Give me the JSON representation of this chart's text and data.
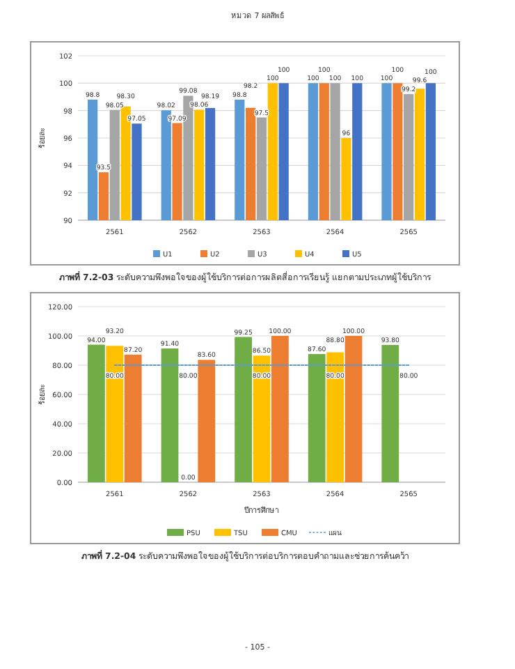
{
  "chart_data": [
    {
      "type": "bar",
      "title": "**ภาพที่ 7.2-03** ระดับความพึงพอใจของผู้ใช้บริการต่อการผลิตสื่อการเรียนรู้ แยกตามประเภทผู้ใช้บริการ",
      "ylabel": "ร้อยละ",
      "annotations": [
        "หมวด 7 ผลลัพธ์"
      ],
      "categories": [
        "2561",
        "2562",
        "2563",
        "2564",
        "2565"
      ],
      "ylim": [
        90,
        102
      ],
      "yticks": [
        90,
        92,
        94,
        96,
        98,
        100,
        102
      ],
      "grid": "y",
      "legend": "bottom",
      "series": [
        {
          "name": "U1",
          "color": "#5b9bd5",
          "values": [
            98.8,
            98.02,
            98.8,
            100,
            100
          ],
          "value_labels": [
            "98.8",
            "98.02",
            "98.8",
            "100",
            "100"
          ]
        },
        {
          "name": "U2",
          "color": "#ed7d31",
          "values": [
            93.5,
            97.09,
            98.2,
            100,
            100
          ],
          "value_labels": [
            "93.5",
            "97.09",
            "98.2",
            "100",
            "100"
          ]
        },
        {
          "name": "U3",
          "color": "#a5a5a5",
          "values": [
            98.05,
            99.08,
            97.5,
            100,
            99.2
          ],
          "value_labels": [
            "98.05",
            "99.08",
            "97.5",
            "100",
            "99.2"
          ]
        },
        {
          "name": "U4",
          "color": "#ffc000",
          "values": [
            98.3,
            98.06,
            100,
            96,
            99.6
          ],
          "value_labels": [
            "98.30",
            "98.06",
            "100",
            "96",
            "99.6"
          ]
        },
        {
          "name": "U5",
          "color": "#4472c4",
          "values": [
            97.05,
            98.19,
            100,
            100,
            100
          ],
          "value_labels": [
            "97.05",
            "98.19",
            "100",
            "100",
            "100"
          ]
        }
      ]
    },
    {
      "type": "bar",
      "title": "**ภาพที่ 7.2-04** ระดับความพึงพอใจของผู้ใช้บริการต่อบริการตอบคำถามและช่วยการค้นคว้า",
      "xlabel": "ปีการศึกษา",
      "ylabel": "ร้อยละ",
      "annotations": [
        "- 105 -"
      ],
      "categories": [
        "2561",
        "2562",
        "2563",
        "2564",
        "2565"
      ],
      "ylim": [
        0,
        120
      ],
      "yticks": [
        {
          "value": 0,
          "label": "0.00"
        },
        {
          "value": 20,
          "label": "20.00"
        },
        {
          "value": 40,
          "label": "40.00"
        },
        {
          "value": 60,
          "label": "60.00"
        },
        {
          "value": 80,
          "label": "80.00"
        },
        {
          "value": 100,
          "label": "100.00"
        },
        {
          "value": 120,
          "label": "120.00"
        }
      ],
      "grid": "y",
      "legend": "bottom",
      "series": [
        {
          "name": "PSU",
          "color": "#70ad47",
          "values": [
            94,
            91.4,
            99.25,
            87.6,
            93.8
          ],
          "value_labels": [
            "94.00",
            "91.40",
            "99.25",
            "87.60",
            "93.80"
          ]
        },
        {
          "name": "TSU",
          "color": "#ffc000",
          "values": [
            93.2,
            0,
            86.5,
            88.8,
            null
          ],
          "value_labels": [
            "93.20",
            "0.00",
            "86.50",
            "88.80",
            null
          ]
        },
        {
          "name": "CMU",
          "color": "#ed7d31",
          "values": [
            87.2,
            83.6,
            100,
            100,
            null
          ],
          "value_labels": [
            "87.20",
            "83.60",
            "100.00",
            "100.00",
            null
          ]
        },
        {
          "name": "แผน",
          "type": "line",
          "line_style": "dashed",
          "color": "#5b9bd5",
          "values": [
            80,
            80,
            80,
            80,
            80
          ],
          "value_labels": [
            "80.00",
            "80.00",
            "80.00",
            "80.00",
            "80.00"
          ]
        }
      ]
    }
  ]
}
